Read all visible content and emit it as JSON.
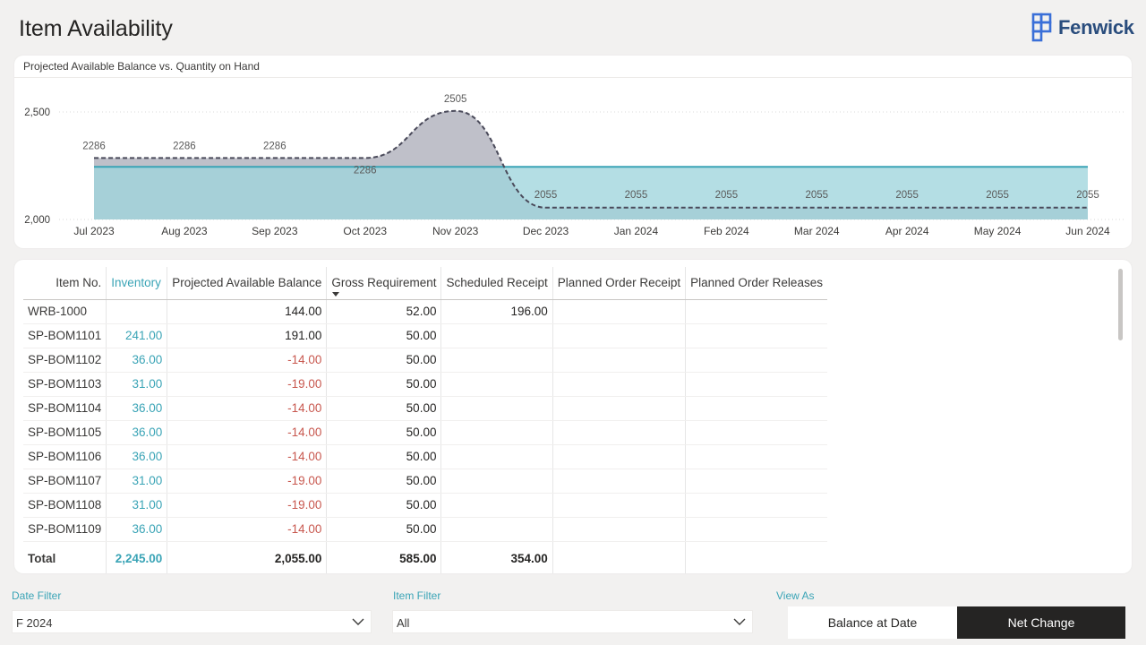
{
  "page": {
    "title": "Item Availability"
  },
  "logo": {
    "text": "Fenwick",
    "icon": "fenwick-logo-icon",
    "color": "#2a4d7d"
  },
  "chart_data": {
    "type": "area",
    "title": "Projected Available Balance vs. Quantity on Hand",
    "categories": [
      "Jul 2023",
      "Aug 2023",
      "Sep 2023",
      "Oct 2023",
      "Nov 2023",
      "Dec 2023",
      "Jan 2024",
      "Feb 2024",
      "Mar 2024",
      "Apr 2024",
      "May 2024",
      "Jun 2024"
    ],
    "y_ticks": [
      "2,500",
      "2,000"
    ],
    "y_tick_values": [
      2500,
      2000
    ],
    "ylim": [
      2000,
      2500
    ],
    "series": [
      {
        "name": "Projected Available Balance",
        "style": "dashed",
        "color": "#bfc0c9",
        "line_color": "#4a4a5a",
        "values": [
          2286,
          2286,
          2286,
          2286,
          2505,
          2055,
          2055,
          2055,
          2055,
          2055,
          2055,
          2055
        ],
        "labels": [
          "2286",
          "2286",
          "2286",
          "2286",
          "2505",
          "2055",
          "2055",
          "2055",
          "2055",
          "2055",
          "2055",
          "2055"
        ]
      },
      {
        "name": "Quantity on Hand",
        "style": "solid",
        "color": "#9fd5dd",
        "line_color": "#3aa4b6",
        "values": [
          2245,
          2245,
          2245,
          2245,
          2245,
          2245,
          2245,
          2245,
          2245,
          2245,
          2245,
          2245
        ]
      }
    ],
    "grid": true
  },
  "table": {
    "columns": [
      "Item No.",
      "Inventory",
      "Projected Available Balance",
      "Gross Requirement",
      "Scheduled Receipt",
      "Planned Order Receipt",
      "Planned Order Releases"
    ],
    "rows": [
      [
        "WRB-1000",
        "",
        "144.00",
        "52.00",
        "196.00",
        "",
        ""
      ],
      [
        "SP-BOM1101",
        "241.00",
        "191.00",
        "50.00",
        "",
        "",
        ""
      ],
      [
        "SP-BOM1102",
        "36.00",
        "-14.00",
        "50.00",
        "",
        "",
        ""
      ],
      [
        "SP-BOM1103",
        "31.00",
        "-19.00",
        "50.00",
        "",
        "",
        ""
      ],
      [
        "SP-BOM1104",
        "36.00",
        "-14.00",
        "50.00",
        "",
        "",
        ""
      ],
      [
        "SP-BOM1105",
        "36.00",
        "-14.00",
        "50.00",
        "",
        "",
        ""
      ],
      [
        "SP-BOM1106",
        "36.00",
        "-14.00",
        "50.00",
        "",
        "",
        ""
      ],
      [
        "SP-BOM1107",
        "31.00",
        "-19.00",
        "50.00",
        "",
        "",
        ""
      ],
      [
        "SP-BOM1108",
        "31.00",
        "-19.00",
        "50.00",
        "",
        "",
        ""
      ],
      [
        "SP-BOM1109",
        "36.00",
        "-14.00",
        "50.00",
        "",
        "",
        ""
      ]
    ],
    "total": [
      "Total",
      "2,245.00",
      "2,055.00",
      "585.00",
      "354.00",
      "",
      ""
    ],
    "sorted_column": "Gross Requirement",
    "accent_color": "#3aa4b6",
    "negative_color": "#c8584f"
  },
  "filters": {
    "date": {
      "label": "Date Filter",
      "value": "F 2024"
    },
    "item": {
      "label": "Item Filter",
      "value": "All"
    }
  },
  "view_as": {
    "label": "View As",
    "options": [
      "Balance at Date",
      "Net Change"
    ],
    "selected": "Net Change"
  }
}
